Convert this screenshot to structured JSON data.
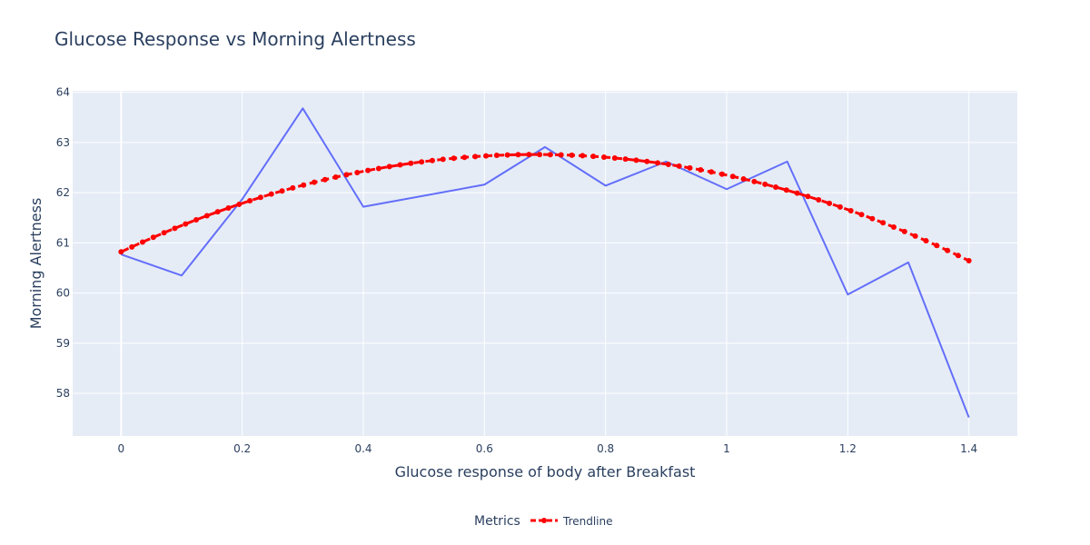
{
  "chart_data": {
    "type": "line",
    "title": "Glucose Response vs Morning Alertness",
    "xlabel": "Glucose response of body after Breakfast",
    "ylabel": "Morning Alertness",
    "xlim": [
      -0.08,
      1.48
    ],
    "ylim": [
      57.15,
      64.03
    ],
    "x_ticks": [
      0,
      0.2,
      0.4,
      0.6,
      0.8,
      1,
      1.2,
      1.4
    ],
    "x_tick_labels": [
      "0",
      "0.2",
      "0.4",
      "0.6",
      "0.8",
      "1",
      "1.2",
      "1.4"
    ],
    "y_ticks": [
      58,
      59,
      60,
      61,
      62,
      63,
      64
    ],
    "y_tick_labels": [
      "58",
      "59",
      "60",
      "61",
      "62",
      "63",
      "64"
    ],
    "grid": true,
    "legend": {
      "title": "Metrics",
      "placement": "bottom-center",
      "entries": [
        "Trendline"
      ]
    },
    "series": [
      {
        "name": "",
        "style": "line",
        "color": "#636efa",
        "x": [
          0,
          0.1,
          0.2,
          0.3,
          0.4,
          0.6,
          0.7,
          0.8,
          0.9,
          1.0,
          1.1,
          1.2,
          1.3,
          1.4
        ],
        "y": [
          60.77,
          60.35,
          61.87,
          63.68,
          61.72,
          62.16,
          62.91,
          62.14,
          62.62,
          62.07,
          62.62,
          59.97,
          60.61,
          57.52
        ]
      },
      {
        "name": "Trendline",
        "style": "dashed-line-with-markers",
        "color": "#ff0000",
        "trend_quadratic": [
          60.82,
          5.67,
          -4.14
        ],
        "x_range": [
          0,
          1.4
        ],
        "n_points": 80
      }
    ]
  }
}
